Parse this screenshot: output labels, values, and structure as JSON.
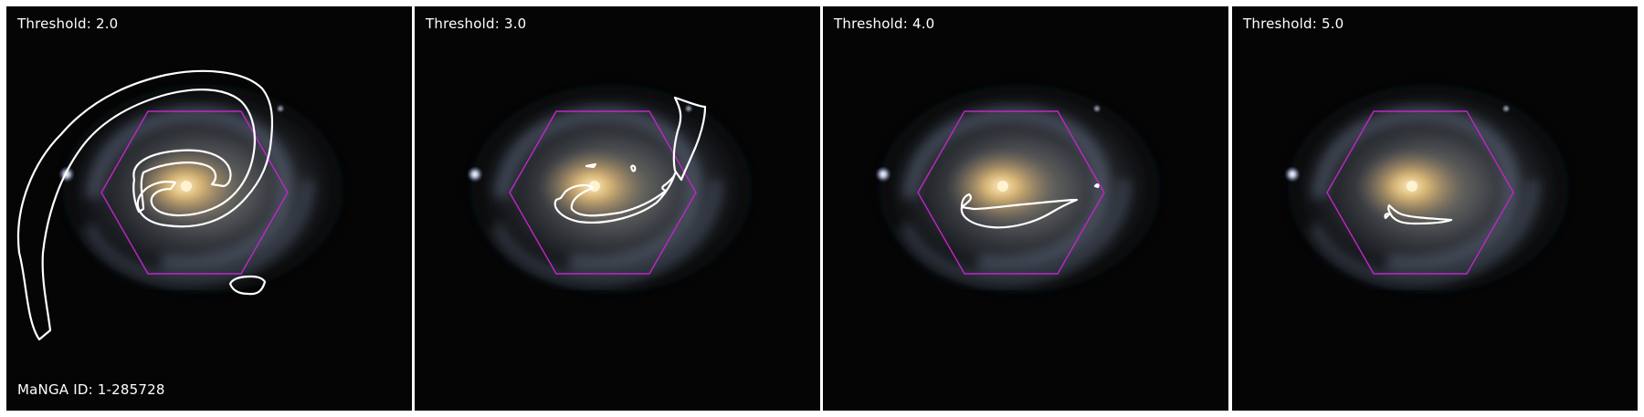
{
  "panels": [
    {
      "threshold_label": "Threshold: 2.0"
    },
    {
      "threshold_label": "Threshold: 3.0"
    },
    {
      "threshold_label": "Threshold: 4.0"
    },
    {
      "threshold_label": "Threshold: 5.0"
    }
  ],
  "manga_id_label": "MaNGA ID: 1-285728",
  "colors": {
    "hexagon": "#c026c8",
    "contour": "#ffffff",
    "background": "#050505",
    "core": "#e8c27a"
  }
}
